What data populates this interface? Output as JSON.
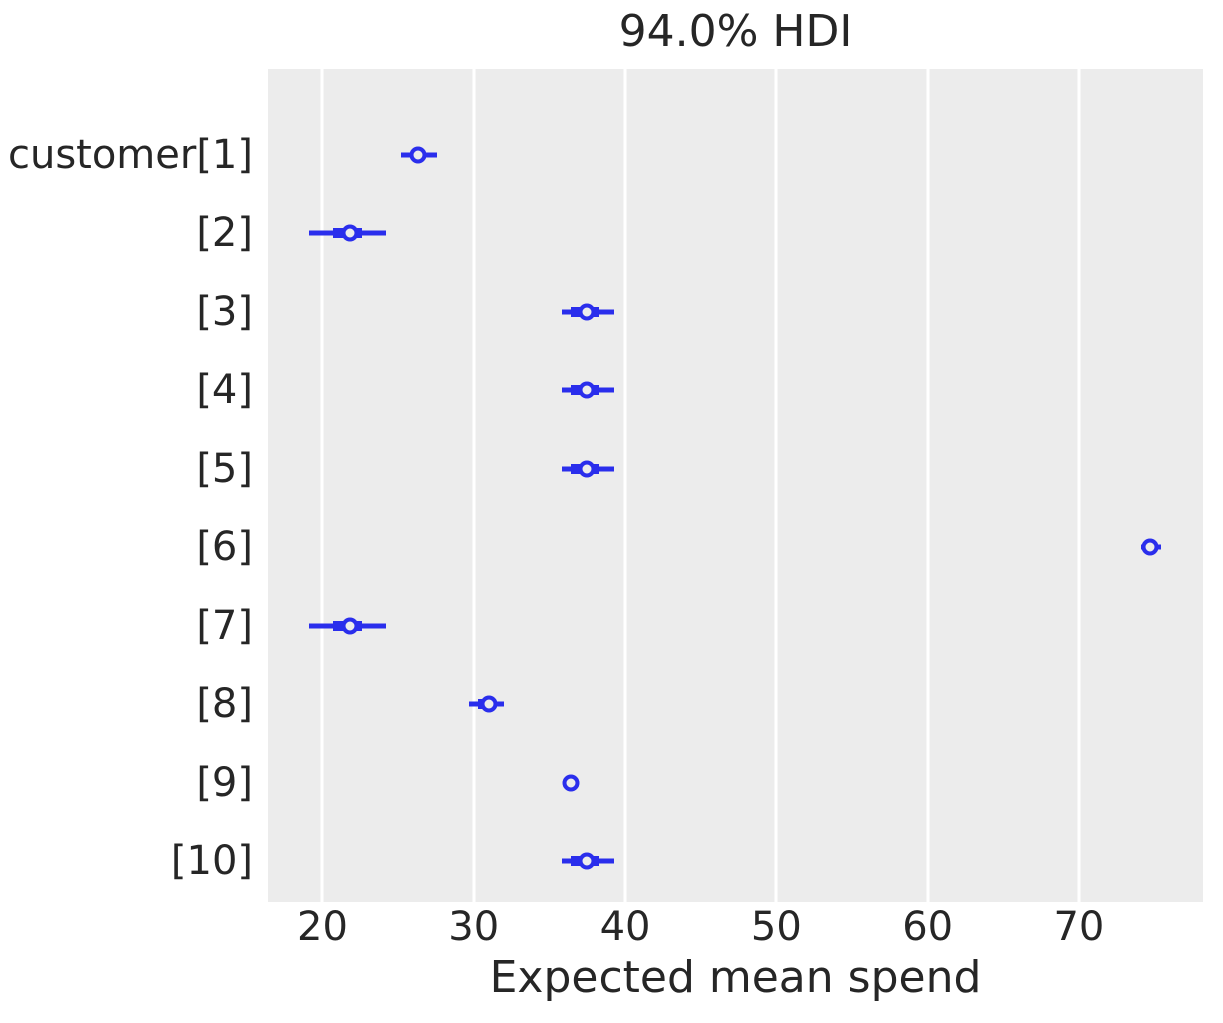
{
  "chart_data": {
    "type": "forest",
    "title": "94.0% HDI",
    "xlabel": "Expected mean spend",
    "hdi_prob_label": "94.0%",
    "xticks": [
      20,
      30,
      40,
      50,
      60,
      70
    ],
    "xlim": [
      16.4,
      78.2
    ],
    "grid": "vertical-only",
    "legend": "none",
    "rows": [
      {
        "label": "customer[1]",
        "mean": 26.3,
        "hdi": [
          25.2,
          27.6
        ],
        "iqr": [
          25.9,
          26.7
        ]
      },
      {
        "label": "[2]",
        "mean": 21.8,
        "hdi": [
          19.1,
          24.2
        ],
        "iqr": [
          20.7,
          22.6
        ]
      },
      {
        "label": "[3]",
        "mean": 37.5,
        "hdi": [
          35.8,
          39.3
        ],
        "iqr": [
          36.4,
          38.3
        ]
      },
      {
        "label": "[4]",
        "mean": 37.5,
        "hdi": [
          35.8,
          39.3
        ],
        "iqr": [
          36.4,
          38.3
        ]
      },
      {
        "label": "[5]",
        "mean": 37.5,
        "hdi": [
          35.8,
          39.3
        ],
        "iqr": [
          36.4,
          38.3
        ]
      },
      {
        "label": "[6]",
        "mean": 74.7,
        "hdi": [
          74.1,
          75.4
        ],
        "iqr": [
          74.4,
          75.1
        ]
      },
      {
        "label": "[7]",
        "mean": 21.8,
        "hdi": [
          19.1,
          24.2
        ],
        "iqr": [
          20.7,
          22.6
        ]
      },
      {
        "label": "[8]",
        "mean": 31.0,
        "hdi": [
          29.7,
          32.0
        ],
        "iqr": [
          30.3,
          31.5
        ]
      },
      {
        "label": "[9]",
        "mean": 36.4,
        "hdi": [
          36.1,
          36.6
        ],
        "iqr": [
          36.2,
          36.5
        ]
      },
      {
        "label": "[10]",
        "mean": 37.5,
        "hdi": [
          35.8,
          39.3
        ],
        "iqr": [
          36.4,
          38.3
        ]
      }
    ],
    "colors": {
      "interval": "#2a2eec",
      "marker_ring": "#2a2eec",
      "marker_face": "#ececec",
      "plot_bg": "#ececec",
      "grid": "#ffffff",
      "text": "#262626",
      "figure_bg": "#ffffff"
    }
  }
}
